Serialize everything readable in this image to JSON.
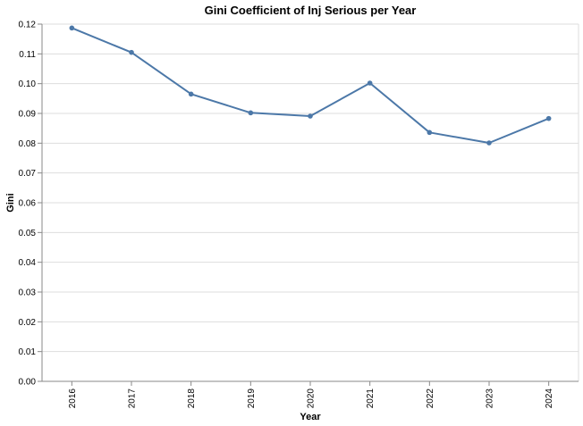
{
  "chart_data": {
    "type": "line",
    "title": "Gini Coefficient of Inj Serious per Year",
    "xlabel": "Year",
    "ylabel": "Gini",
    "categories": [
      "2016",
      "2017",
      "2018",
      "2019",
      "2020",
      "2021",
      "2022",
      "2023",
      "2024"
    ],
    "series": [
      {
        "values": [
          0.1187,
          0.1105,
          0.0965,
          0.0902,
          0.0891,
          0.1002,
          0.0836,
          0.0801,
          0.0883
        ],
        "color": "#4c78a8"
      }
    ],
    "ylim": [
      0,
      0.12
    ],
    "yticks": [
      "0.00",
      "0.01",
      "0.02",
      "0.03",
      "0.04",
      "0.05",
      "0.06",
      "0.07",
      "0.08",
      "0.09",
      "0.10",
      "0.11",
      "0.12"
    ],
    "grid": true,
    "legend": "none"
  }
}
